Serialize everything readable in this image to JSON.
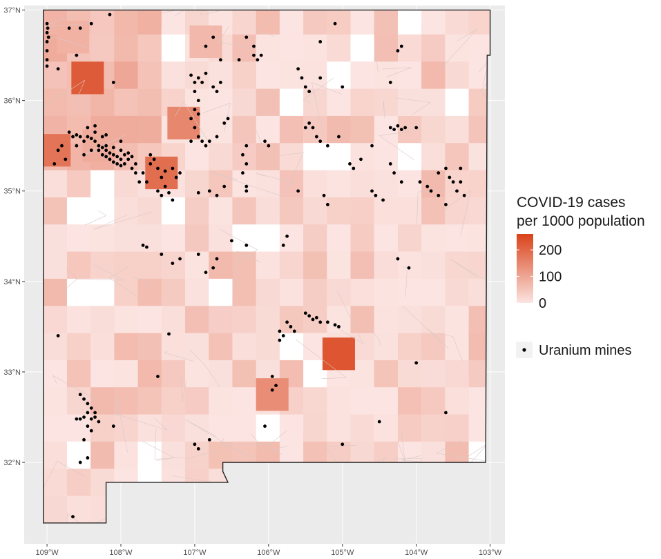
{
  "map": {
    "x_axis": {
      "ticks": [
        "109°W",
        "108°W",
        "107°W",
        "106°W",
        "105°W",
        "104°W",
        "103°W"
      ],
      "values": [
        -109,
        -108,
        -107,
        -106,
        -105,
        -104,
        -103
      ]
    },
    "y_axis": {
      "ticks": [
        "32°N",
        "33°N",
        "34°N",
        "35°N",
        "36°N",
        "37°N"
      ],
      "values": [
        32,
        33,
        34,
        35,
        36,
        37
      ]
    },
    "extent": {
      "lon": [
        -109.3,
        -102.8
      ],
      "lat": [
        31.1,
        37.05
      ]
    },
    "background_color": "#ebebeb"
  },
  "legend": {
    "title_line1": "COVID-19 cases",
    "title_line2": "per 1000 population",
    "ticks": [
      "200",
      "100",
      "0"
    ],
    "tick_values": [
      200,
      100,
      0
    ],
    "scale_max": 260,
    "color_low": "#fbe4e1",
    "color_high": "#d9421a",
    "mines_label": "Uranium mines",
    "mines_color": "#000000"
  },
  "chart_data": {
    "type": "choropleth",
    "fill_variable": "COVID-19 cases per 1000 population",
    "fill_range": [
      0,
      260
    ],
    "highlighted_areas": [
      {
        "lon": -108.9,
        "lat": 35.45,
        "value": 180
      },
      {
        "lon": -108.45,
        "lat": 36.25,
        "value": 220
      },
      {
        "lon": -107.45,
        "lat": 35.2,
        "value": 190
      },
      {
        "lon": -107.15,
        "lat": 35.75,
        "value": 150
      },
      {
        "lon": -105.05,
        "lat": 33.2,
        "value": 230
      },
      {
        "lon": -105.95,
        "lat": 32.75,
        "value": 140
      },
      {
        "lon": -108.3,
        "lat": 35.5,
        "value": 90
      },
      {
        "lon": -108.65,
        "lat": 36.7,
        "value": 80
      },
      {
        "lon": -106.85,
        "lat": 36.65,
        "value": 70
      }
    ],
    "points": {
      "name": "Uranium mines",
      "coords": [
        [
          -109.0,
          36.85
        ],
        [
          -109.0,
          36.75
        ],
        [
          -109.0,
          36.65
        ],
        [
          -109.0,
          36.55
        ],
        [
          -109.0,
          36.45
        ],
        [
          -109.0,
          36.38
        ],
        [
          -108.99,
          36.8
        ],
        [
          -108.98,
          36.7
        ],
        [
          -108.7,
          36.8
        ],
        [
          -108.55,
          36.8
        ],
        [
          -108.4,
          36.85
        ],
        [
          -108.15,
          36.95
        ],
        [
          -108.85,
          36.35
        ],
        [
          -108.1,
          36.2
        ],
        [
          -108.6,
          36.5
        ],
        [
          -108.7,
          35.65
        ],
        [
          -108.65,
          35.6
        ],
        [
          -108.6,
          35.62
        ],
        [
          -108.55,
          35.6
        ],
        [
          -108.5,
          35.55
        ],
        [
          -108.45,
          35.6
        ],
        [
          -108.4,
          35.58
        ],
        [
          -108.35,
          35.55
        ],
        [
          -108.3,
          35.5
        ],
        [
          -108.25,
          35.48
        ],
        [
          -108.2,
          35.45
        ],
        [
          -108.15,
          35.42
        ],
        [
          -108.1,
          35.4
        ],
        [
          -108.05,
          35.38
        ],
        [
          -108.0,
          35.35
        ],
        [
          -107.95,
          35.4
        ],
        [
          -107.9,
          35.35
        ],
        [
          -107.85,
          35.38
        ],
        [
          -108.3,
          35.45
        ],
        [
          -108.25,
          35.4
        ],
        [
          -108.2,
          35.38
        ],
        [
          -108.15,
          35.35
        ],
        [
          -108.1,
          35.32
        ],
        [
          -108.05,
          35.3
        ],
        [
          -108.0,
          35.28
        ],
        [
          -107.95,
          35.3
        ],
        [
          -108.2,
          35.5
        ],
        [
          -108.1,
          35.48
        ],
        [
          -108.0,
          35.45
        ],
        [
          -107.9,
          35.42
        ],
        [
          -108.4,
          35.45
        ],
        [
          -108.5,
          35.4
        ],
        [
          -108.6,
          35.5
        ],
        [
          -108.8,
          35.5
        ],
        [
          -108.85,
          35.45
        ],
        [
          -108.75,
          35.35
        ],
        [
          -108.9,
          35.3
        ],
        [
          -108.35,
          35.65
        ],
        [
          -108.25,
          35.6
        ],
        [
          -108.0,
          35.55
        ],
        [
          -107.85,
          35.25
        ],
        [
          -107.8,
          35.3
        ],
        [
          -107.8,
          35.2
        ],
        [
          -107.75,
          35.1
        ],
        [
          -107.7,
          35.2
        ],
        [
          -107.6,
          35.3
        ],
        [
          -107.5,
          35.25
        ],
        [
          -107.45,
          35.15
        ],
        [
          -107.4,
          35.05
        ],
        [
          -107.4,
          35.22
        ],
        [
          -107.3,
          35.25
        ],
        [
          -107.25,
          35.15
        ],
        [
          -107.2,
          35.2
        ],
        [
          -107.5,
          35.0
        ],
        [
          -107.45,
          34.95
        ],
        [
          -107.35,
          34.98
        ],
        [
          -107.3,
          34.9
        ],
        [
          -107.6,
          35.4
        ],
        [
          -107.55,
          35.35
        ],
        [
          -107.65,
          35.1
        ],
        [
          -108.45,
          35.7
        ],
        [
          -108.35,
          35.72
        ],
        [
          -108.2,
          35.62
        ],
        [
          -107.05,
          36.28
        ],
        [
          -107.0,
          36.2
        ],
        [
          -106.95,
          36.25
        ],
        [
          -106.9,
          36.2
        ],
        [
          -106.85,
          36.3
        ],
        [
          -106.75,
          36.15
        ],
        [
          -106.7,
          36.1
        ],
        [
          -106.65,
          36.2
        ],
        [
          -107.0,
          36.1
        ],
        [
          -106.95,
          36.0
        ],
        [
          -107.0,
          35.9
        ],
        [
          -107.05,
          35.8
        ],
        [
          -106.95,
          35.85
        ],
        [
          -107.0,
          35.7
        ],
        [
          -106.95,
          35.6
        ],
        [
          -106.9,
          35.55
        ],
        [
          -107.05,
          35.55
        ],
        [
          -106.85,
          35.5
        ],
        [
          -106.8,
          35.55
        ],
        [
          -106.7,
          35.6
        ],
        [
          -106.6,
          35.75
        ],
        [
          -106.55,
          35.8
        ],
        [
          -106.85,
          36.6
        ],
        [
          -106.75,
          36.7
        ],
        [
          -106.65,
          36.45
        ],
        [
          -106.4,
          36.45
        ],
        [
          -106.3,
          36.7
        ],
        [
          -106.2,
          36.6
        ],
        [
          -106.15,
          36.45
        ],
        [
          -106.2,
          36.5
        ],
        [
          -106.1,
          36.5
        ],
        [
          -106.3,
          35.5
        ],
        [
          -106.35,
          35.4
        ],
        [
          -106.3,
          35.3
        ],
        [
          -106.35,
          35.2
        ],
        [
          -106.3,
          35.05
        ],
        [
          -106.3,
          35.0
        ],
        [
          -106.05,
          35.55
        ],
        [
          -106.0,
          35.5
        ],
        [
          -106.8,
          35.0
        ],
        [
          -106.7,
          34.95
        ],
        [
          -106.6,
          35.05
        ],
        [
          -106.95,
          34.98
        ],
        [
          -105.6,
          36.35
        ],
        [
          -105.55,
          36.25
        ],
        [
          -105.5,
          36.15
        ],
        [
          -105.45,
          36.1
        ],
        [
          -105.5,
          35.7
        ],
        [
          -105.45,
          35.75
        ],
        [
          -105.4,
          35.7
        ],
        [
          -105.35,
          35.6
        ],
        [
          -105.3,
          35.55
        ],
        [
          -105.2,
          35.5
        ],
        [
          -105.05,
          35.6
        ],
        [
          -104.9,
          35.3
        ],
        [
          -104.85,
          35.25
        ],
        [
          -104.75,
          35.35
        ],
        [
          -104.6,
          35.5
        ],
        [
          -104.6,
          35.0
        ],
        [
          -104.55,
          34.95
        ],
        [
          -104.45,
          34.9
        ],
        [
          -104.35,
          35.7
        ],
        [
          -104.3,
          35.68
        ],
        [
          -104.25,
          35.72
        ],
        [
          -104.2,
          35.68
        ],
        [
          -104.15,
          35.7
        ],
        [
          -104.35,
          35.3
        ],
        [
          -104.3,
          35.2
        ],
        [
          -104.2,
          35.1
        ],
        [
          -104.0,
          35.7
        ],
        [
          -103.95,
          35.1
        ],
        [
          -103.85,
          35.05
        ],
        [
          -103.8,
          35.0
        ],
        [
          -103.7,
          35.2
        ],
        [
          -103.6,
          35.25
        ],
        [
          -103.55,
          35.15
        ],
        [
          -103.5,
          35.1
        ],
        [
          -103.45,
          35.0
        ],
        [
          -103.4,
          35.25
        ],
        [
          -103.4,
          35.1
        ],
        [
          -103.35,
          34.95
        ],
        [
          -103.7,
          34.95
        ],
        [
          -103.6,
          34.85
        ],
        [
          -104.25,
          36.55
        ],
        [
          -104.2,
          36.6
        ],
        [
          -105.3,
          36.65
        ],
        [
          -105.1,
          36.85
        ],
        [
          -105.0,
          36.15
        ],
        [
          -105.25,
          34.95
        ],
        [
          -105.2,
          34.85
        ],
        [
          -105.6,
          35.0
        ],
        [
          -105.75,
          34.5
        ],
        [
          -105.8,
          34.4
        ],
        [
          -105.3,
          36.25
        ],
        [
          -104.35,
          36.2
        ],
        [
          -107.7,
          34.4
        ],
        [
          -107.65,
          34.38
        ],
        [
          -107.45,
          34.3
        ],
        [
          -107.3,
          34.2
        ],
        [
          -107.2,
          34.25
        ],
        [
          -106.95,
          34.3
        ],
        [
          -106.85,
          34.1
        ],
        [
          -106.75,
          34.15
        ],
        [
          -106.7,
          34.25
        ],
        [
          -106.5,
          34.45
        ],
        [
          -106.3,
          34.4
        ],
        [
          -104.25,
          34.25
        ],
        [
          -104.1,
          34.15
        ],
        [
          -105.75,
          33.55
        ],
        [
          -105.7,
          33.5
        ],
        [
          -105.65,
          33.45
        ],
        [
          -105.5,
          33.65
        ],
        [
          -105.45,
          33.62
        ],
        [
          -105.4,
          33.58
        ],
        [
          -105.35,
          33.6
        ],
        [
          -105.3,
          33.55
        ],
        [
          -105.2,
          33.55
        ],
        [
          -105.1,
          33.52
        ],
        [
          -105.05,
          33.5
        ],
        [
          -105.85,
          33.45
        ],
        [
          -105.8,
          33.4
        ],
        [
          -105.85,
          33.35
        ],
        [
          -108.85,
          33.4
        ],
        [
          -107.35,
          33.42
        ],
        [
          -107.5,
          32.95
        ],
        [
          -105.95,
          32.95
        ],
        [
          -105.9,
          32.85
        ],
        [
          -105.95,
          32.8
        ],
        [
          -104.0,
          33.1
        ],
        [
          -103.6,
          32.55
        ],
        [
          -104.5,
          32.45
        ],
        [
          -105.0,
          32.2
        ],
        [
          -106.05,
          32.4
        ],
        [
          -106.8,
          32.25
        ],
        [
          -108.55,
          32.75
        ],
        [
          -108.5,
          32.7
        ],
        [
          -108.45,
          32.65
        ],
        [
          -108.4,
          32.6
        ],
        [
          -108.35,
          32.55
        ],
        [
          -108.45,
          32.55
        ],
        [
          -108.5,
          32.5
        ],
        [
          -108.55,
          32.48
        ],
        [
          -108.4,
          32.48
        ],
        [
          -108.35,
          32.5
        ],
        [
          -108.3,
          32.45
        ],
        [
          -108.6,
          32.48
        ],
        [
          -108.45,
          32.4
        ],
        [
          -108.4,
          32.35
        ],
        [
          -108.5,
          32.25
        ],
        [
          -108.45,
          32.05
        ],
        [
          -108.55,
          32.0
        ],
        [
          -108.1,
          32.4
        ],
        [
          -108.65,
          31.4
        ],
        [
          -107.0,
          32.2
        ],
        [
          -106.95,
          32.15
        ]
      ]
    }
  }
}
